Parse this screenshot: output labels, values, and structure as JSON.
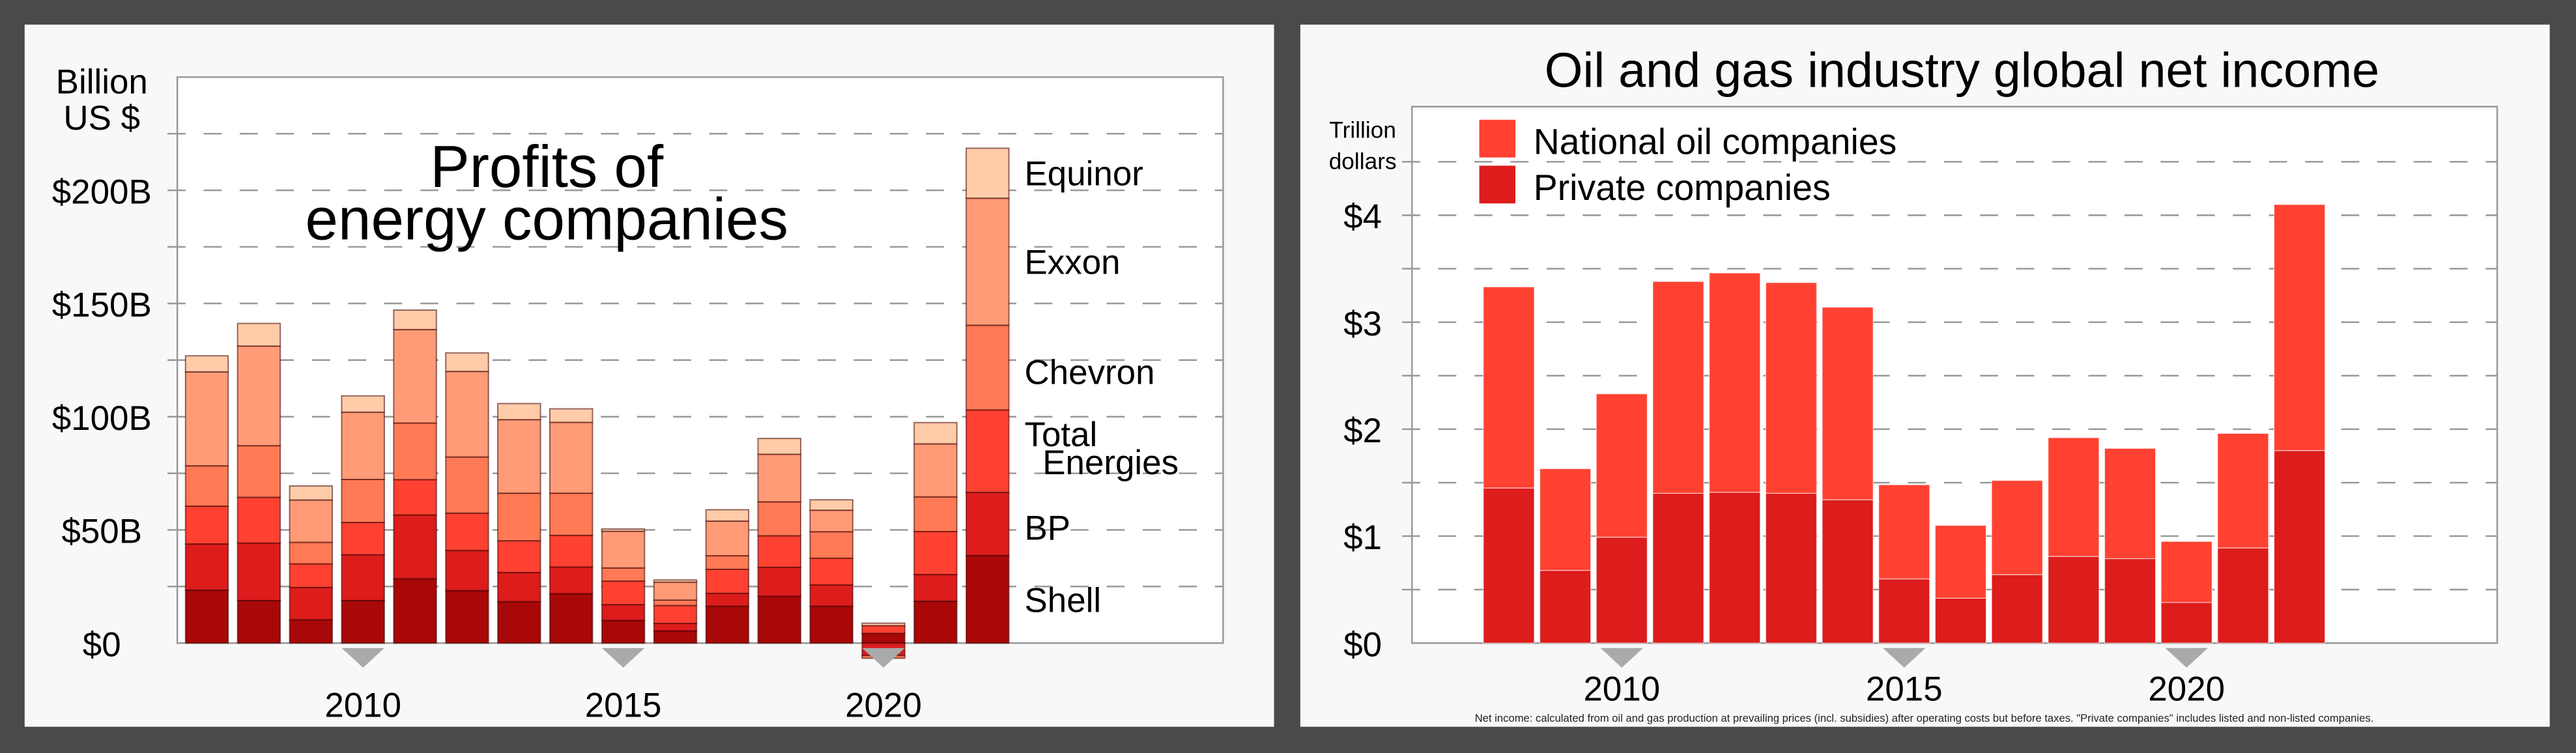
{
  "chart_data": [
    {
      "type": "bar",
      "stacked": true,
      "title": [
        "Profits of",
        "energy companies"
      ],
      "ylabel": [
        "Billion",
        "US $"
      ],
      "xlabel": "",
      "ylim": [
        0,
        225
      ],
      "grid": true,
      "yticks": [
        0,
        50,
        100,
        150,
        200
      ],
      "ytick_labels": [
        "$0",
        "$50B",
        "$100B",
        "$150B",
        "$200B"
      ],
      "xtick_labels": [
        {
          "year": 2010,
          "label": "2010"
        },
        {
          "year": 2015,
          "label": "2015"
        },
        {
          "year": 2020,
          "label": "2020"
        }
      ],
      "legend_placement": "right",
      "categories": [
        2007,
        2008,
        2009,
        2010,
        2011,
        2012,
        2013,
        2014,
        2015,
        2016,
        2017,
        2018,
        2019,
        2020,
        2021,
        2022
      ],
      "series": [
        {
          "name": "Shell",
          "label_lines": [
            "Shell"
          ],
          "color": "#a80808",
          "values": [
            23.4,
            18.8,
            10.3,
            18.8,
            28.4,
            23.2,
            18.3,
            21.8,
            10.0,
            5.4,
            16.3,
            20.7,
            16.3,
            4.3,
            18.5,
            38.7
          ]
        },
        {
          "name": "BP",
          "label_lines": [
            "BP"
          ],
          "color": "#dd1c1c",
          "values": [
            20.4,
            25.4,
            14.3,
            20.2,
            28.2,
            17.7,
            12.9,
            11.8,
            7.0,
            3.3,
            5.7,
            12.8,
            9.4,
            -5.5,
            11.8,
            27.9
          ]
        },
        {
          "name": "Total Energies",
          "label_lines": [
            "Total",
            "Energies"
          ],
          "color": "#ff4131",
          "values": [
            16.7,
            20.2,
            10.4,
            14.3,
            15.6,
            16.5,
            14.0,
            14.0,
            10.4,
            7.9,
            10.6,
            13.9,
            11.8,
            3.4,
            19.0,
            36.4
          ]
        },
        {
          "name": "Chevron",
          "label_lines": [
            "Chevron"
          ],
          "color": "#ff7a55",
          "values": [
            17.8,
            22.8,
            9.5,
            19.0,
            25.0,
            24.8,
            21.0,
            18.6,
            5.8,
            2.4,
            6.0,
            15.0,
            11.7,
            -1.2,
            15.3,
            37.4
          ]
        },
        {
          "name": "Exxon",
          "label_lines": [
            "Exxon"
          ],
          "color": "#ff9b77",
          "values": [
            41.5,
            44.0,
            18.7,
            29.7,
            41.3,
            37.8,
            32.5,
            31.3,
            16.2,
            7.9,
            15.3,
            21.0,
            9.5,
            0,
            23.4,
            56.1
          ]
        },
        {
          "name": "Equinor",
          "label_lines": [
            "Equinor"
          ],
          "color": "#ffcba8",
          "values": [
            7.1,
            10.0,
            6.2,
            7.2,
            8.6,
            8.2,
            7.1,
            6.0,
            1.0,
            1.0,
            5.0,
            7.0,
            4.6,
            1.1,
            9.4,
            22.1
          ]
        }
      ]
    },
    {
      "type": "bar",
      "stacked": true,
      "title": "Oil and gas industry global net income",
      "ylabel": [
        "Trillion",
        "dollars"
      ],
      "xlabel": "",
      "ylim": [
        0,
        5
      ],
      "grid": true,
      "yticks": [
        0,
        1,
        2,
        3,
        4
      ],
      "ytick_labels": [
        "$0",
        "$1",
        "$2",
        "$3",
        "$4"
      ],
      "xtick_labels": [
        {
          "year": 2010,
          "label": "2010"
        },
        {
          "year": 2015,
          "label": "2015"
        },
        {
          "year": 2020,
          "label": "2020"
        }
      ],
      "legend_placement": "top-left",
      "categories": [
        2008,
        2009,
        2010,
        2011,
        2012,
        2013,
        2014,
        2015,
        2016,
        2017,
        2018,
        2019,
        2020,
        2021,
        2022
      ],
      "series": [
        {
          "name": "Private companies",
          "color": "#dd1c1c",
          "values": [
            1.45,
            0.68,
            0.99,
            1.4,
            1.41,
            1.4,
            1.34,
            0.6,
            0.42,
            0.64,
            0.81,
            0.79,
            0.38,
            0.89,
            1.8
          ]
        },
        {
          "name": "National oil companies",
          "color": "#ff4131",
          "values": [
            1.88,
            0.95,
            1.34,
            1.98,
            2.05,
            1.97,
            1.8,
            0.88,
            0.68,
            0.88,
            1.11,
            1.03,
            0.57,
            1.07,
            2.3
          ]
        }
      ],
      "legend_order": [
        "National oil companies",
        "Private companies"
      ],
      "footnote": "Net income: calculated from oil and gas production at prevailing prices (incl. subsidies) after operating costs but before taxes. \"Private companies\" includes listed and non-listed companies."
    }
  ]
}
